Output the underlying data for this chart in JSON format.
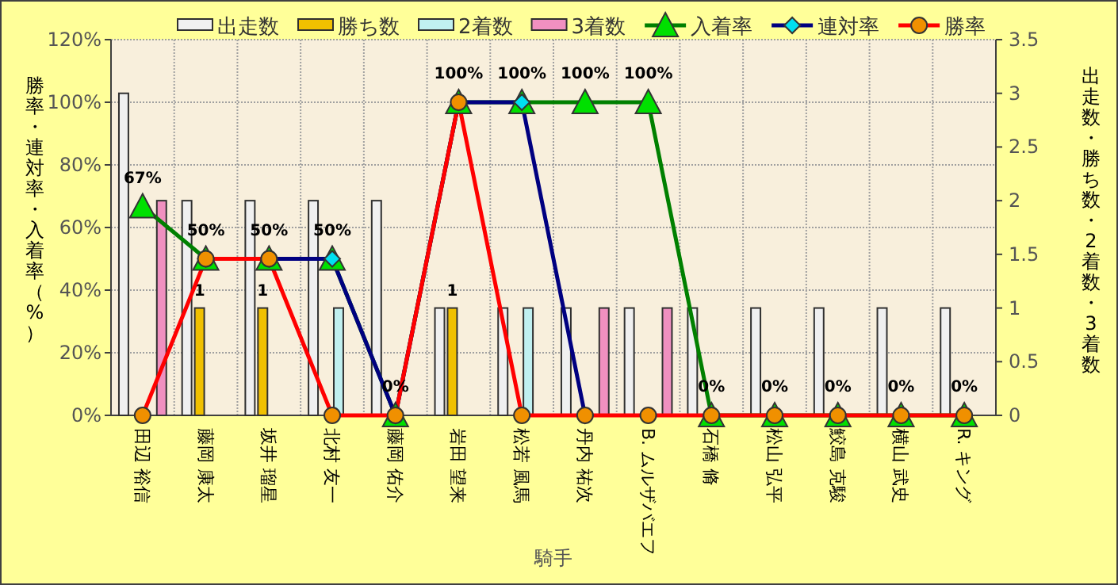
{
  "chart_data": {
    "type": "bar",
    "xlabel": "騎手",
    "ylabel": "勝率・連対率・入着率（%）",
    "y2label": "出走数・勝ち数・2着数・3着数",
    "categories": [
      "田辺 裕信",
      "藤岡 康太",
      "坂井 瑠星",
      "北村 友一",
      "藤岡 佑介",
      "岩田 望来",
      "松若 風馬",
      "丹内 祐次",
      "B. ムルザバエフ",
      "石橋 脩",
      "松山 弘平",
      "鮫島 克駿",
      "横山 武史",
      "R. キング"
    ],
    "ylim": [
      0,
      120
    ],
    "yticks": [
      {
        "value": 0,
        "label": "0%"
      },
      {
        "value": 20,
        "label": "20%"
      },
      {
        "value": 40,
        "label": "40%"
      },
      {
        "value": 60,
        "label": "60%"
      },
      {
        "value": 80,
        "label": "80%"
      },
      {
        "value": 100,
        "label": "100%"
      },
      {
        "value": 120,
        "label": "120%"
      }
    ],
    "y2lim": [
      0,
      3.5
    ],
    "y2ticks": [
      0,
      0.5,
      1,
      1.5,
      2,
      2.5,
      3,
      3.5
    ],
    "grid": true,
    "legend": "top",
    "series": [
      {
        "name": "出走数",
        "axis": "y2",
        "color": "#f0f0f0",
        "values": [
          3,
          2,
          2,
          2,
          2,
          1,
          1,
          1,
          1,
          1,
          1,
          1,
          1,
          1
        ]
      },
      {
        "name": "勝ち数",
        "axis": "y2",
        "color": "#f0c000",
        "values": [
          0,
          1,
          1,
          0,
          0,
          1,
          0,
          0,
          0,
          0,
          0,
          0,
          0,
          0
        ],
        "value_labels": [
          null,
          "1",
          "1",
          null,
          null,
          "1",
          null,
          null,
          null,
          null,
          null,
          null,
          null,
          null
        ]
      },
      {
        "name": "2着数",
        "axis": "y2",
        "color": "#c0f0f0",
        "values": [
          0,
          0,
          0,
          1,
          0,
          0,
          1,
          0,
          0,
          0,
          0,
          0,
          0,
          0
        ]
      },
      {
        "name": "3着数",
        "axis": "y2",
        "color": "#f090c0",
        "values": [
          2,
          0,
          0,
          0,
          0,
          0,
          0,
          1,
          1,
          0,
          0,
          0,
          0,
          0
        ]
      },
      {
        "name": "入着率",
        "type": "line",
        "axis": "y",
        "color": "#008000",
        "marker": "triangle",
        "colors": [
          "#00e000",
          "#00e000",
          "#00e000",
          "#00e000",
          "#00e000",
          "#00e000",
          "#00e000",
          "#00e000",
          "#00e000",
          "#00e000",
          "#00e000",
          "#00e000",
          "#00e000",
          "#00e000"
        ],
        "values": [
          66.7,
          50,
          50,
          50,
          0,
          100,
          100,
          100,
          100,
          0,
          0,
          0,
          0,
          0
        ],
        "value_labels": [
          "67%",
          "50%",
          "50%",
          "50%",
          "0%",
          "100%",
          "100%",
          "100%",
          "100%",
          "0%",
          "0%",
          "0%",
          "0%",
          "0%"
        ]
      },
      {
        "name": "連対率",
        "type": "line",
        "axis": "y",
        "color": "#000080",
        "marker": "diamond",
        "colors": [
          null,
          "#00e0f0",
          "#00e0f0",
          "#00e0f0",
          "#00e0f0",
          "#00e0f0",
          "#00e0f0",
          "#00e0f0",
          null,
          null,
          null,
          null,
          null,
          null
        ],
        "values": [
          null,
          50,
          50,
          50,
          0,
          100,
          100,
          0,
          null,
          null,
          null,
          null,
          null,
          null
        ]
      },
      {
        "name": "勝率",
        "type": "line",
        "axis": "y",
        "color": "#ff0000",
        "marker": "circle",
        "colors": [
          "#f09000",
          "#f09000",
          "#f09000",
          "#f09000",
          "#f09000",
          "#f09000",
          "#f09000",
          "#f09000",
          "#f09000",
          "#f09000",
          "#f09000",
          "#f09000",
          "#f09000",
          "#f09000"
        ],
        "values": [
          0,
          50,
          50,
          0,
          0,
          100,
          0,
          0,
          0,
          0,
          0,
          0,
          0,
          0
        ]
      }
    ]
  }
}
